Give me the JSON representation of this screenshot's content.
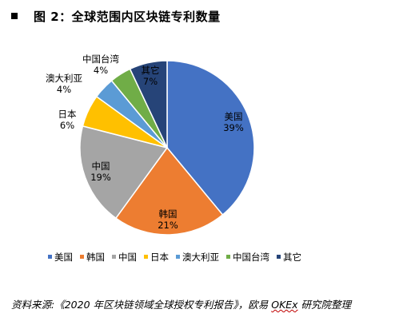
{
  "header": {
    "title": "图 2：全球范围内区块链专利数量"
  },
  "chart_data": {
    "type": "pie",
    "title": "",
    "slices": [
      {
        "label": "美国",
        "value": 39,
        "pct_label": "39%",
        "color": "#4472C4"
      },
      {
        "label": "韩国",
        "value": 21,
        "pct_label": "21%",
        "color": "#ED7D31"
      },
      {
        "label": "中国",
        "value": 19,
        "pct_label": "19%",
        "color": "#A5A5A5"
      },
      {
        "label": "日本",
        "value": 6,
        "pct_label": "6%",
        "color": "#FFC000"
      },
      {
        "label": "澳大利亚",
        "value": 4,
        "pct_label": "4%",
        "color": "#5B9BD5"
      },
      {
        "label": "中国台湾",
        "value": 4,
        "pct_label": "4%",
        "color": "#70AD47"
      },
      {
        "label": "其它",
        "value": 7,
        "pct_label": "7%",
        "color": "#264478"
      }
    ],
    "legend_position": "bottom"
  },
  "source": {
    "prefix": "资料来源:《2020 年区块链领域全球授权专利报告》，欧易 ",
    "okex": "OKEx",
    "suffix": " 研究院整理"
  }
}
